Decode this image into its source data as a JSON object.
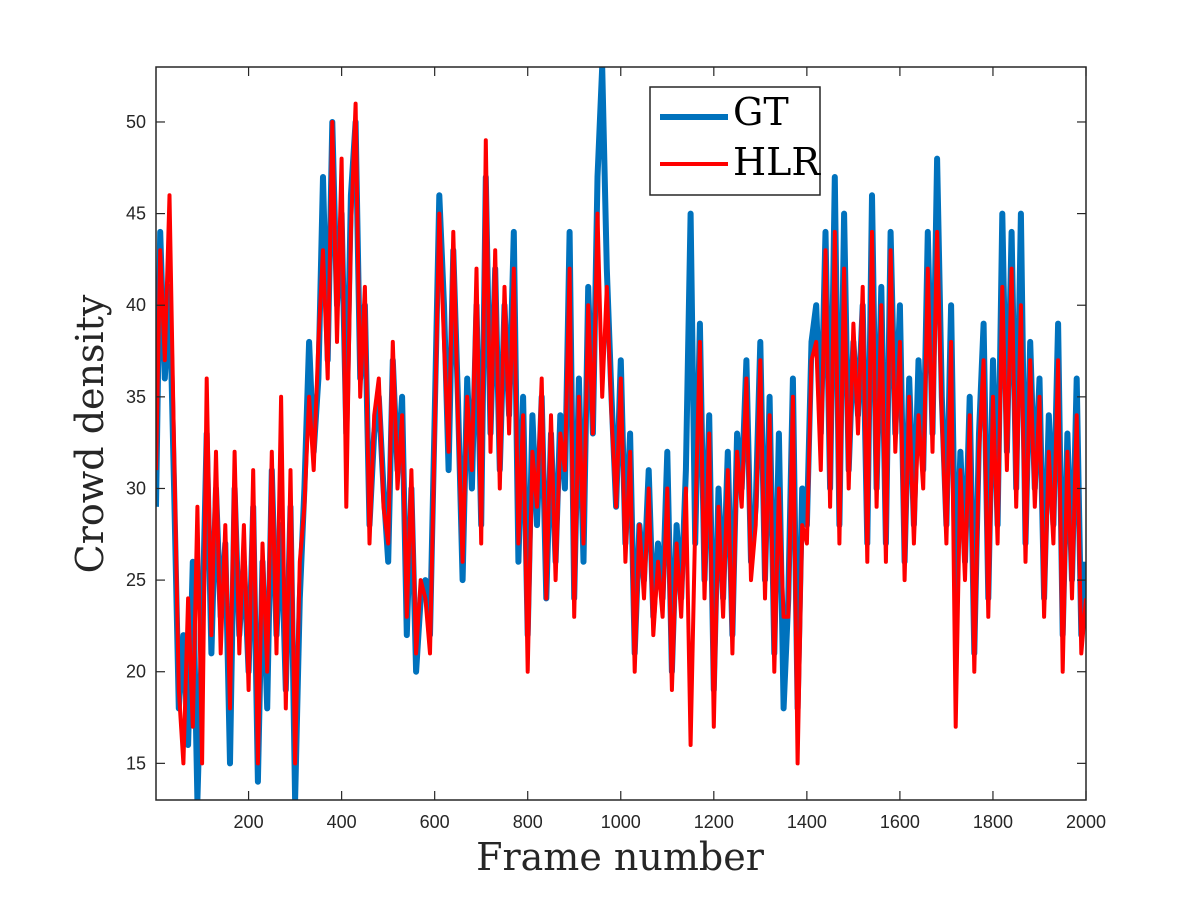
{
  "chart_data": {
    "type": "line",
    "xlabel": "Frame number",
    "ylabel": "Crowd density",
    "xlim": [
      1,
      2000
    ],
    "ylim": [
      13,
      53
    ],
    "xticks": [
      200,
      400,
      600,
      800,
      1000,
      1200,
      1400,
      1600,
      1800,
      2000
    ],
    "yticks": [
      15,
      20,
      25,
      30,
      35,
      40,
      45,
      50
    ],
    "grid": false,
    "legend_position": "top-center",
    "series": [
      {
        "name": "GT",
        "color": "#0072BD",
        "x": [
          1,
          10,
          20,
          30,
          40,
          50,
          60,
          70,
          80,
          90,
          100,
          110,
          120,
          130,
          140,
          150,
          160,
          170,
          180,
          190,
          200,
          210,
          220,
          230,
          240,
          250,
          260,
          270,
          280,
          290,
          300,
          310,
          320,
          330,
          340,
          350,
          360,
          370,
          380,
          390,
          400,
          410,
          420,
          430,
          440,
          450,
          460,
          470,
          480,
          490,
          500,
          510,
          520,
          530,
          540,
          550,
          560,
          570,
          580,
          590,
          600,
          610,
          620,
          630,
          640,
          650,
          660,
          670,
          680,
          690,
          700,
          710,
          720,
          730,
          740,
          750,
          760,
          770,
          780,
          790,
          800,
          810,
          820,
          830,
          840,
          850,
          860,
          870,
          880,
          890,
          900,
          910,
          920,
          930,
          940,
          950,
          960,
          970,
          980,
          990,
          1000,
          1010,
          1020,
          1030,
          1040,
          1050,
          1060,
          1070,
          1080,
          1090,
          1100,
          1110,
          1120,
          1130,
          1140,
          1150,
          1160,
          1170,
          1180,
          1190,
          1200,
          1210,
          1220,
          1230,
          1240,
          1250,
          1260,
          1270,
          1280,
          1290,
          1300,
          1310,
          1320,
          1330,
          1340,
          1350,
          1360,
          1370,
          1380,
          1390,
          1400,
          1410,
          1420,
          1430,
          1440,
          1450,
          1460,
          1470,
          1480,
          1490,
          1500,
          1510,
          1520,
          1530,
          1540,
          1550,
          1560,
          1570,
          1580,
          1590,
          1600,
          1610,
          1620,
          1630,
          1640,
          1650,
          1660,
          1670,
          1680,
          1690,
          1700,
          1710,
          1720,
          1730,
          1740,
          1750,
          1760,
          1770,
          1780,
          1790,
          1800,
          1810,
          1820,
          1830,
          1840,
          1850,
          1860,
          1870,
          1880,
          1890,
          1900,
          1910,
          1920,
          1930,
          1940,
          1950,
          1960,
          1970,
          1980,
          1990,
          2000
        ],
        "values": [
          29,
          44,
          36,
          41,
          30,
          18,
          22,
          16,
          26,
          13,
          22,
          33,
          21,
          30,
          23,
          27,
          15,
          30,
          22,
          26,
          20,
          29,
          14,
          26,
          18,
          31,
          22,
          28,
          19,
          29,
          13,
          24,
          30,
          38,
          32,
          36,
          47,
          37,
          50,
          40,
          45,
          33,
          46,
          50,
          36,
          40,
          28,
          33,
          35,
          30,
          26,
          37,
          31,
          35,
          22,
          30,
          20,
          24,
          25,
          22,
          34,
          46,
          40,
          31,
          43,
          35,
          25,
          36,
          30,
          40,
          28,
          47,
          33,
          42,
          31,
          40,
          34,
          44,
          26,
          35,
          22,
          34,
          28,
          35,
          24,
          33,
          26,
          34,
          30,
          44,
          24,
          36,
          26,
          41,
          33,
          47,
          53,
          42,
          35,
          29,
          37,
          27,
          33,
          21,
          28,
          25,
          31,
          23,
          27,
          24,
          32,
          20,
          28,
          24,
          31,
          45,
          27,
          39,
          25,
          34,
          19,
          30,
          24,
          32,
          22,
          33,
          30,
          37,
          26,
          29,
          38,
          25,
          35,
          21,
          33,
          18,
          24,
          36,
          18,
          30,
          28,
          38,
          40,
          33,
          44,
          30,
          47,
          28,
          45,
          31,
          38,
          34,
          40,
          27,
          46,
          30,
          41,
          27,
          44,
          33,
          40,
          26,
          36,
          28,
          37,
          31,
          44,
          33,
          48,
          35,
          28,
          40,
          24,
          32,
          26,
          35,
          21,
          33,
          39,
          24,
          37,
          28,
          45,
          32,
          44,
          30,
          45,
          27,
          38,
          30,
          36,
          24,
          34,
          28,
          39,
          22,
          33,
          25,
          36,
          22,
          26
        ]
      },
      {
        "name": "HLR",
        "color": "#FF0000",
        "x": [
          1,
          10,
          20,
          30,
          40,
          50,
          60,
          70,
          80,
          90,
          100,
          110,
          120,
          130,
          140,
          150,
          160,
          170,
          180,
          190,
          200,
          210,
          220,
          230,
          240,
          250,
          260,
          270,
          280,
          290,
          300,
          310,
          320,
          330,
          340,
          350,
          360,
          370,
          380,
          390,
          400,
          410,
          420,
          430,
          440,
          450,
          460,
          470,
          480,
          490,
          500,
          510,
          520,
          530,
          540,
          550,
          560,
          570,
          580,
          590,
          600,
          610,
          620,
          630,
          640,
          650,
          660,
          670,
          680,
          690,
          700,
          710,
          720,
          730,
          740,
          750,
          760,
          770,
          780,
          790,
          800,
          810,
          820,
          830,
          840,
          850,
          860,
          870,
          880,
          890,
          900,
          910,
          920,
          930,
          940,
          950,
          960,
          970,
          980,
          990,
          1000,
          1010,
          1020,
          1030,
          1040,
          1050,
          1060,
          1070,
          1080,
          1090,
          1100,
          1110,
          1120,
          1130,
          1140,
          1150,
          1160,
          1170,
          1180,
          1190,
          1200,
          1210,
          1220,
          1230,
          1240,
          1250,
          1260,
          1270,
          1280,
          1290,
          1300,
          1310,
          1320,
          1330,
          1340,
          1350,
          1360,
          1370,
          1380,
          1390,
          1400,
          1410,
          1420,
          1430,
          1440,
          1450,
          1460,
          1470,
          1480,
          1490,
          1500,
          1510,
          1520,
          1530,
          1540,
          1550,
          1560,
          1570,
          1580,
          1590,
          1600,
          1610,
          1620,
          1630,
          1640,
          1650,
          1660,
          1670,
          1680,
          1690,
          1700,
          1710,
          1720,
          1730,
          1740,
          1750,
          1760,
          1770,
          1780,
          1790,
          1800,
          1810,
          1820,
          1830,
          1840,
          1850,
          1860,
          1870,
          1880,
          1890,
          1900,
          1910,
          1920,
          1930,
          1940,
          1950,
          1960,
          1970,
          1980,
          1990,
          2000
        ],
        "values": [
          31,
          43,
          37,
          46,
          32,
          19,
          15,
          24,
          17,
          29,
          15,
          36,
          22,
          32,
          21,
          28,
          18,
          32,
          21,
          28,
          19,
          31,
          15,
          27,
          20,
          32,
          21,
          35,
          18,
          31,
          15,
          26,
          29,
          35,
          31,
          38,
          43,
          36,
          50,
          38,
          48,
          29,
          44,
          51,
          35,
          41,
          27,
          34,
          36,
          29,
          27,
          38,
          30,
          34,
          23,
          31,
          21,
          25,
          24,
          21,
          33,
          45,
          38,
          32,
          44,
          34,
          26,
          35,
          31,
          42,
          27,
          49,
          32,
          43,
          30,
          41,
          33,
          42,
          27,
          34,
          20,
          32,
          29,
          36,
          24,
          34,
          25,
          33,
          31,
          42,
          23,
          35,
          27,
          40,
          33,
          45,
          35,
          41,
          34,
          29,
          36,
          26,
          32,
          20,
          28,
          24,
          30,
          22,
          26,
          23,
          30,
          19,
          27,
          23,
          30,
          16,
          28,
          38,
          24,
          33,
          17,
          29,
          23,
          31,
          21,
          32,
          29,
          36,
          25,
          28,
          37,
          24,
          34,
          20,
          30,
          23,
          23,
          35,
          15,
          28,
          27,
          37,
          38,
          31,
          43,
          29,
          44,
          27,
          42,
          30,
          39,
          33,
          41,
          26,
          44,
          29,
          40,
          26,
          43,
          32,
          38,
          25,
          35,
          27,
          34,
          30,
          42,
          32,
          44,
          34,
          27,
          38,
          17,
          31,
          25,
          34,
          20,
          32,
          37,
          23,
          35,
          27,
          41,
          31,
          42,
          29,
          40,
          26,
          37,
          29,
          35,
          23,
          32,
          27,
          37,
          20,
          32,
          24,
          34,
          21,
          24
        ]
      }
    ]
  }
}
